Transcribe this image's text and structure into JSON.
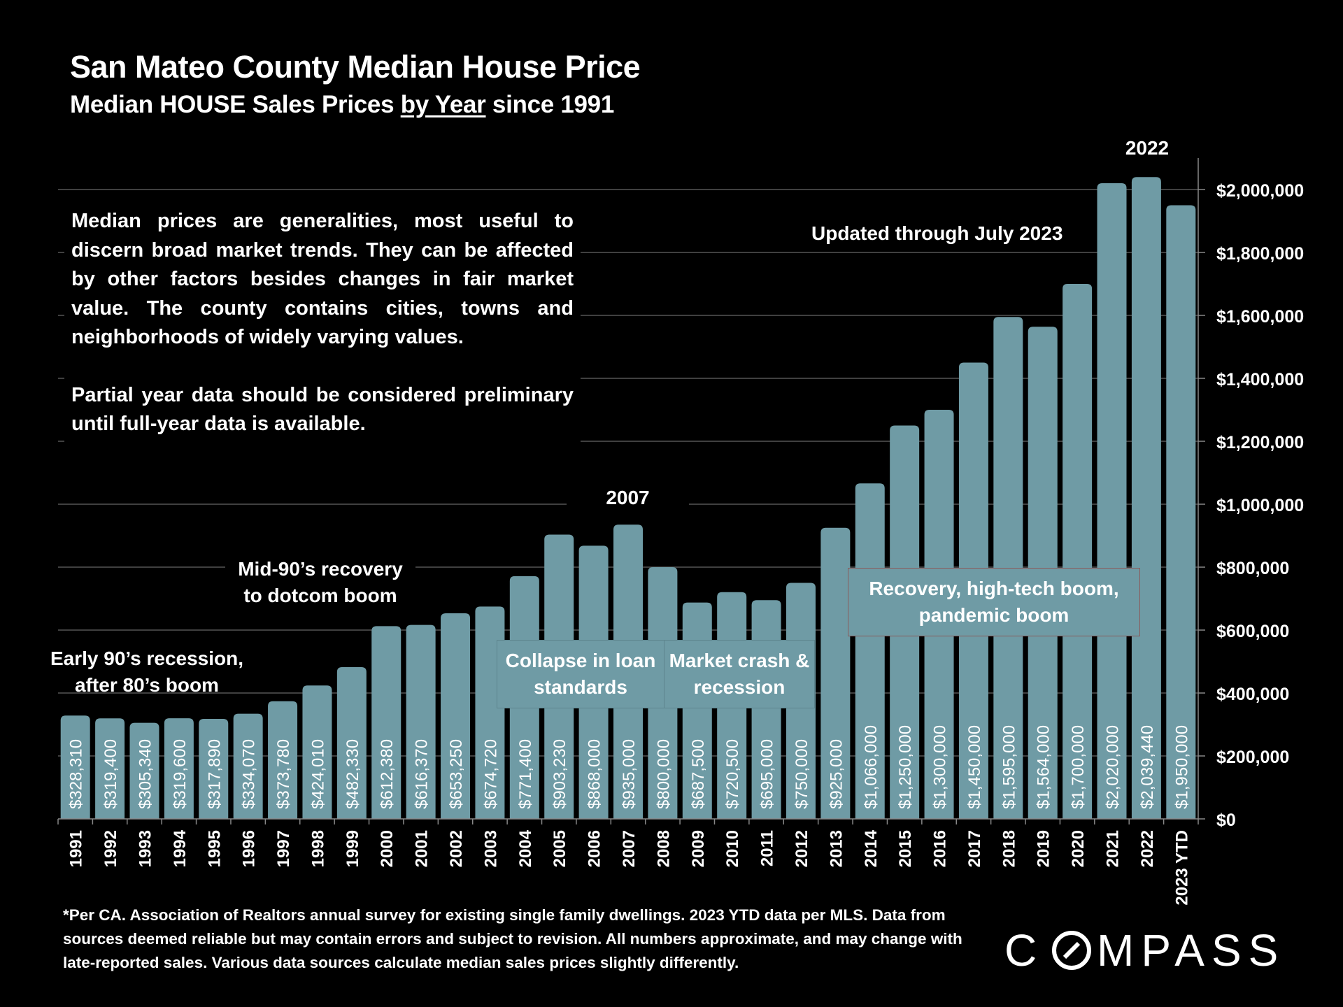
{
  "header": {
    "title": "San Mateo County Median House Price",
    "subtitle_pre": "Median HOUSE Sales Prices ",
    "subtitle_underlined": "by Year",
    "subtitle_post": " since 1991"
  },
  "notes": {
    "paragraph1": "Median prices are generalities, most useful to discern broad market trends. They can be affected by other factors besides changes in fair market value. The county contains cities, towns and neighborhoods of widely varying values.",
    "paragraph2": "Partial year data should be considered preliminary until full-year data is available."
  },
  "annotations": {
    "early90s": "Early 90’s recession, after 80’s boom",
    "mid90s": "Mid-90’s recovery to dotcom boom",
    "peak2007": "2007",
    "collapse": "Collapse in loan standards",
    "crash": "Market crash & recession",
    "recovery": "Recovery, high-tech boom, pandemic boom",
    "peak2022": "2022",
    "updated": "Updated through July 2023"
  },
  "footnote": "*Per CA. Association of Realtors annual survey for existing single family dwellings. 2023 YTD data per MLS. Data from sources deemed reliable but may contain errors and subject to revision. All numbers approximate, and may change with late-reported sales. Various data sources calculate median sales prices slightly differently.",
  "brand": {
    "logo_text": "COMPASS"
  },
  "colors": {
    "bar": "#6f9ba5",
    "background": "#000000",
    "gridline": "#555555",
    "text": "#ffffff"
  },
  "chart_data": {
    "type": "bar",
    "title": "San Mateo County Median House Price",
    "subtitle": "Median HOUSE Sales Prices by Year since 1991",
    "xlabel": "",
    "ylabel": "",
    "y_axis_side": "right",
    "ylim": [
      0,
      2100000
    ],
    "yticks": [
      0,
      200000,
      400000,
      600000,
      800000,
      1000000,
      1200000,
      1400000,
      1600000,
      1800000,
      2000000
    ],
    "ytick_labels": [
      "$0",
      "$200,000",
      "$400,000",
      "$600,000",
      "$800,000",
      "$1,000,000",
      "$1,200,000",
      "$1,400,000",
      "$1,600,000",
      "$1,800,000",
      "$2,000,000"
    ],
    "grid": true,
    "categories": [
      "1991",
      "1992",
      "1993",
      "1994",
      "1995",
      "1996",
      "1997",
      "1998",
      "1999",
      "2000",
      "2001",
      "2002",
      "2003",
      "2004",
      "2005",
      "2006",
      "2007",
      "2008",
      "2009",
      "2010",
      "2011",
      "2012",
      "2013",
      "2014",
      "2015",
      "2016",
      "2017",
      "2018",
      "2019",
      "2020",
      "2021",
      "2022",
      "2023 YTD"
    ],
    "values": [
      328310,
      319400,
      305340,
      319600,
      317890,
      334070,
      373780,
      424010,
      482330,
      612380,
      616370,
      653250,
      674720,
      771400,
      903230,
      868000,
      935000,
      800000,
      687500,
      720500,
      695000,
      750000,
      925000,
      1066000,
      1250000,
      1300000,
      1450000,
      1595000,
      1564000,
      1700000,
      2020000,
      2039440,
      1950000
    ],
    "data_labels": [
      "$328,310",
      "$319,400",
      "$305,340",
      "$319,600",
      "$317,890",
      "$334,070",
      "$373,780",
      "$424,010",
      "$482,330",
      "$612,380",
      "$616,370",
      "$653,250",
      "$674,720",
      "$771,400",
      "$903,230",
      "$868,000",
      "$935,000",
      "$800,000",
      "$687,500",
      "$720,500",
      "$695,000",
      "$750,000",
      "$925,000",
      "$1,066,000",
      "$1,250,000",
      "$1,300,000",
      "$1,450,000",
      "$1,595,000",
      "$1,564,000",
      "$1,700,000",
      "$2,020,000",
      "$2,039,440",
      "$1,950,000"
    ],
    "legend": "none"
  }
}
